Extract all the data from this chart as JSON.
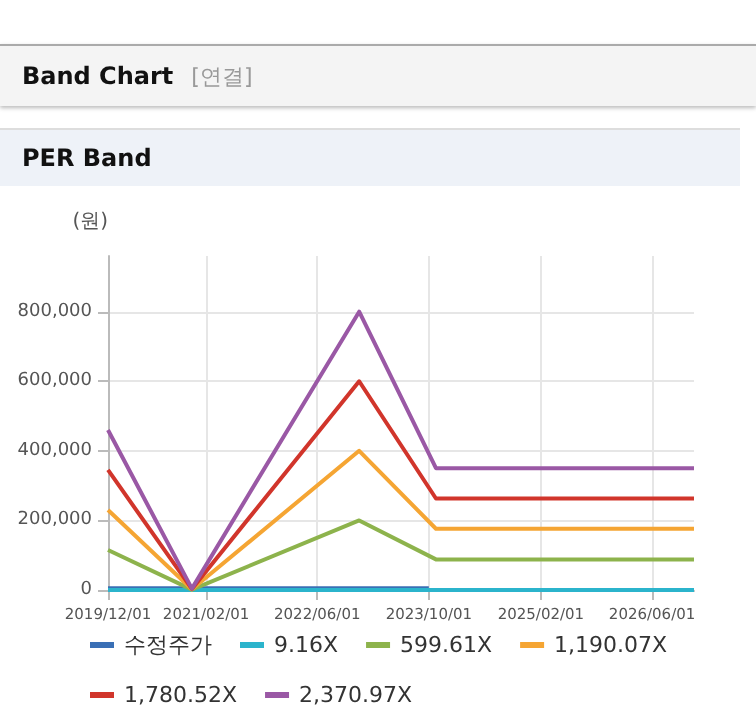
{
  "chart_data": {
    "type": "line",
    "title": "Band Chart",
    "subtitle": "PER Band",
    "annotations": [
      "[연결]"
    ],
    "ylabel": "(원)",
    "x": [
      "2019-12-01",
      "2020-12-01",
      "2022-12-01",
      "2023-11-01",
      "2026-12-01"
    ],
    "xlim": [
      "2019-12-01",
      "2026-12-01"
    ],
    "xticks": [
      {
        "value": "2019-12-01",
        "label": "2019/12/01"
      },
      {
        "value": "2021-02-01",
        "label": "2021/02/01"
      },
      {
        "value": "2022-06-01",
        "label": "2022/06/01"
      },
      {
        "value": "2023-10-01",
        "label": "2023/10/01"
      },
      {
        "value": "2025-02-01",
        "label": "2025/02/01"
      },
      {
        "value": "2026-06-01",
        "label": "2026/06/01"
      }
    ],
    "ylim": [
      0,
      960000
    ],
    "yticks": [
      {
        "value": 0,
        "label": "0"
      },
      {
        "value": 200000,
        "label": "200,000"
      },
      {
        "value": 400000,
        "label": "400,000"
      },
      {
        "value": 600000,
        "label": "600,000"
      },
      {
        "value": 800000,
        "label": "800,000"
      }
    ],
    "series": [
      {
        "name": "수정주가",
        "color": "#3a6fb5",
        "x": [
          "2019-12-01",
          "2020-12-01",
          "2022-12-01",
          "2023-10-01"
        ],
        "values": [
          5000,
          5000,
          5000,
          5000
        ]
      },
      {
        "name": "9.16X",
        "color": "#2bb4cc",
        "values": [
          0,
          0,
          0,
          0,
          0
        ]
      },
      {
        "name": "599.61X",
        "color": "#8db34c",
        "values": [
          115000,
          1000,
          200000,
          88000,
          88000
        ]
      },
      {
        "name": "1,190.07X",
        "color": "#f5a533",
        "values": [
          230000,
          2000,
          400000,
          176000,
          176000
        ]
      },
      {
        "name": "1,780.52X",
        "color": "#d1352b",
        "values": [
          345000,
          3000,
          600000,
          263000,
          263000
        ]
      },
      {
        "name": "2,370.97X",
        "color": "#9a58a5",
        "values": [
          460000,
          4000,
          800000,
          350000,
          350000
        ]
      }
    ],
    "grid": true,
    "legend": "bottom",
    "marker": "none",
    "line_style": "solid"
  }
}
